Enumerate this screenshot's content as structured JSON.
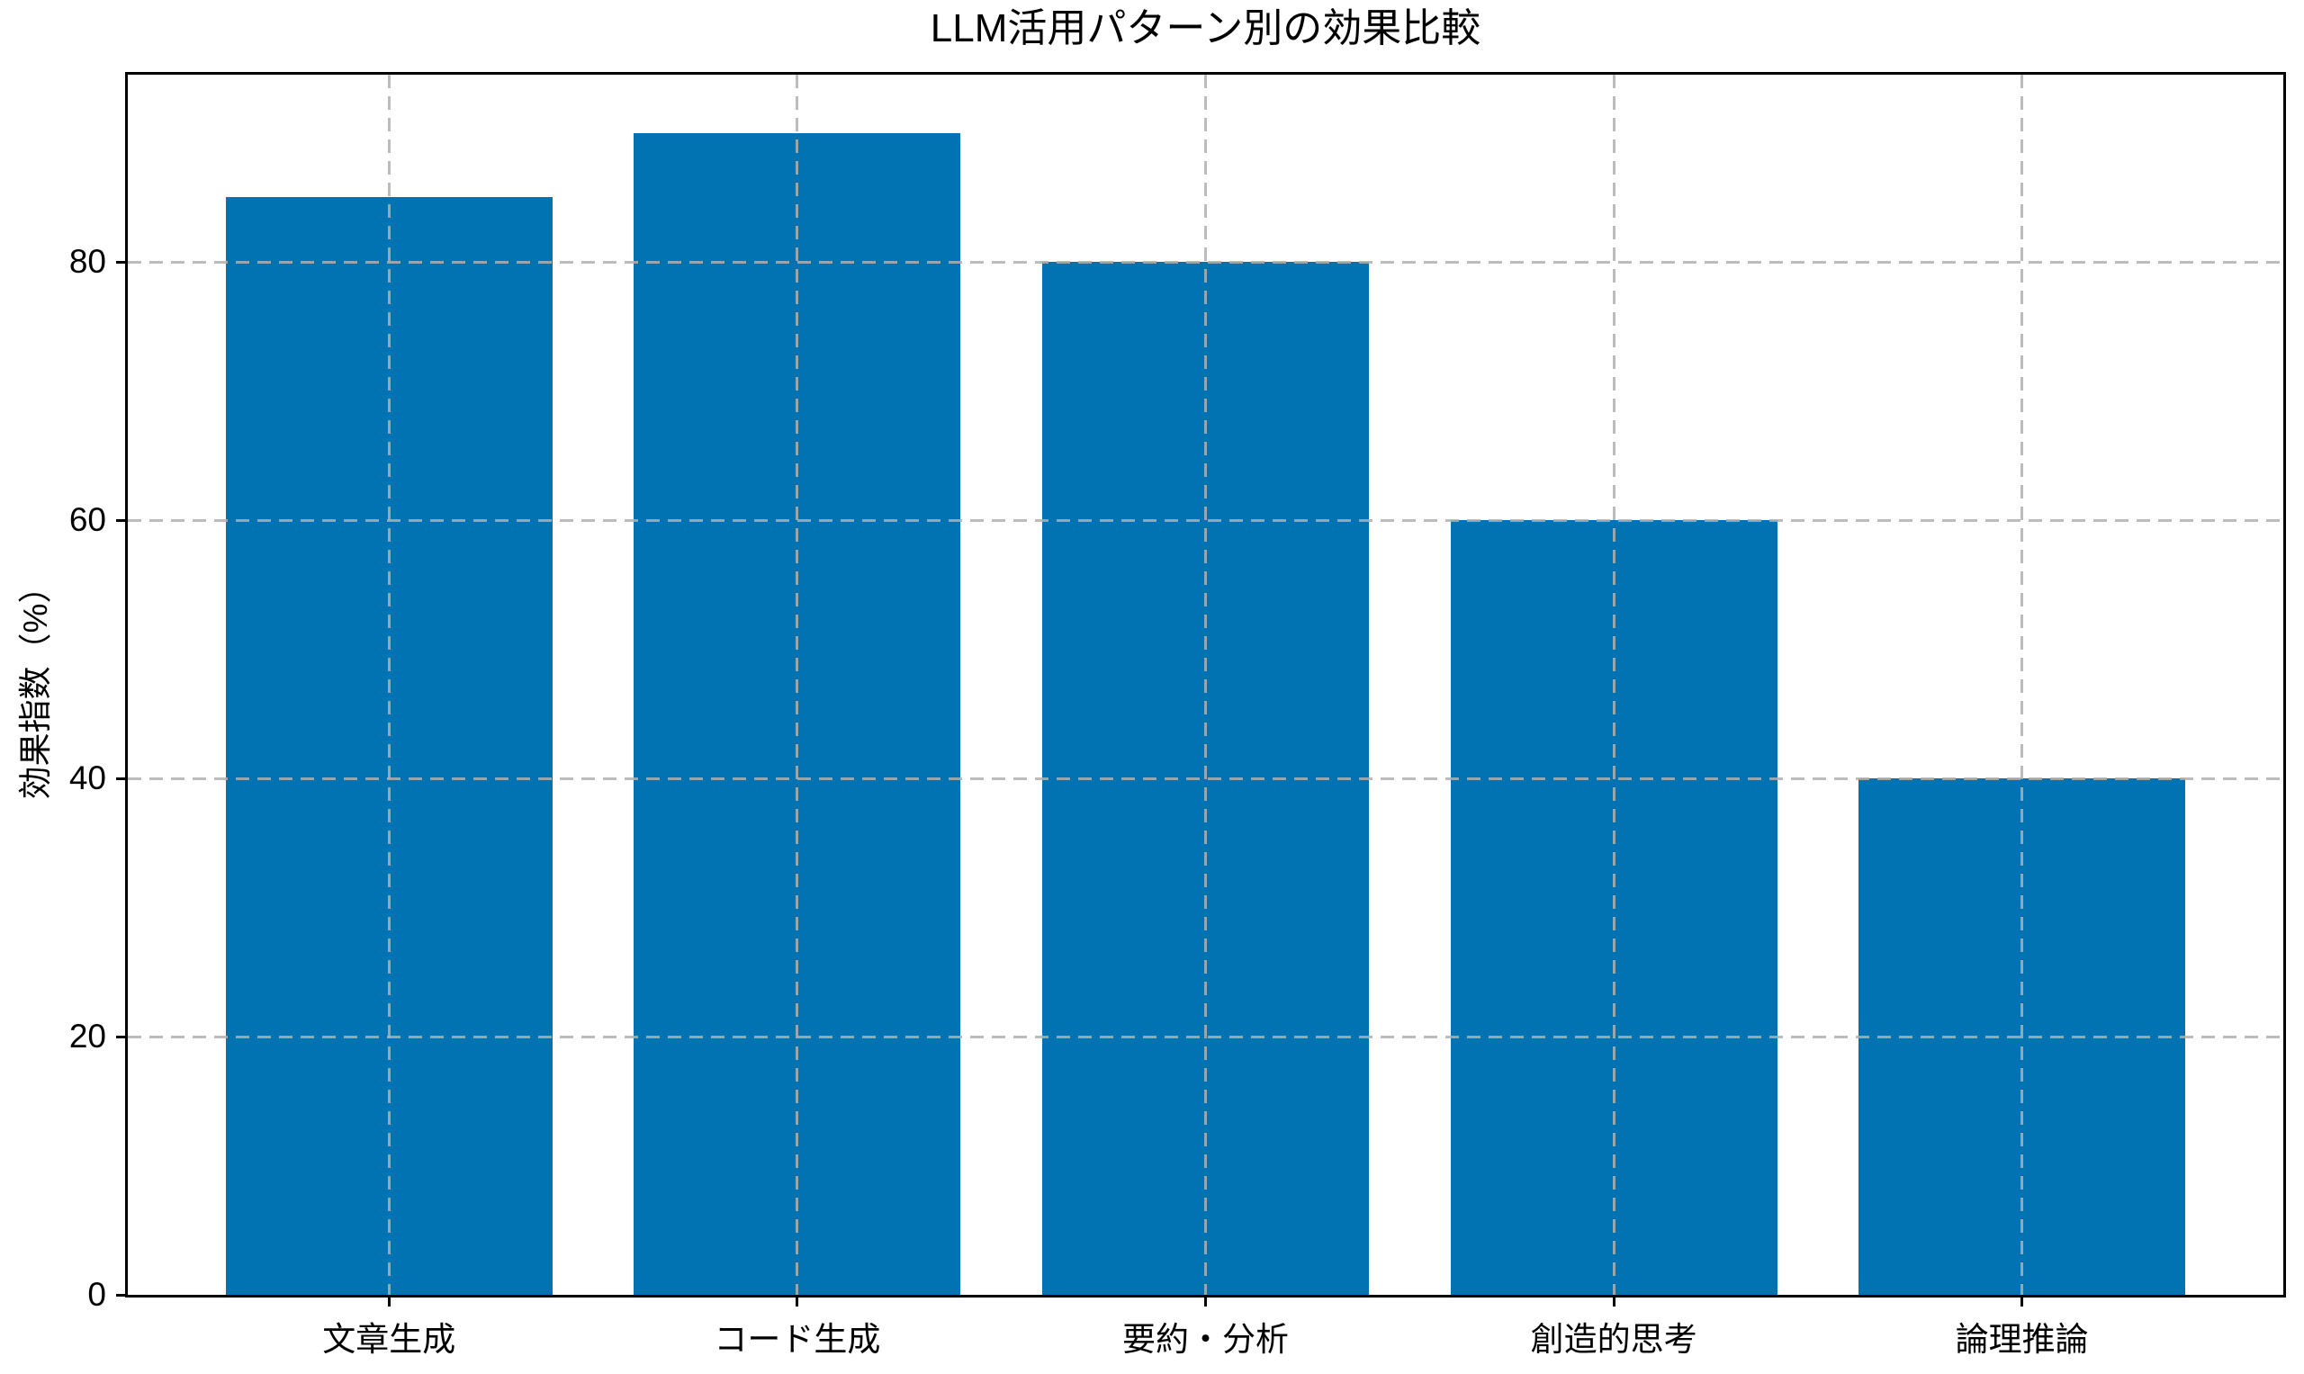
{
  "chart_data": {
    "type": "bar",
    "title": "LLM活用パターン別の効果比較",
    "ylabel": "効果指数（%）",
    "xlabel": "",
    "categories": [
      "文章生成",
      "コード生成",
      "要約・分析",
      "創造的思考",
      "論理推論"
    ],
    "values": [
      85,
      90,
      80,
      60,
      40
    ],
    "yticks": [
      0,
      20,
      40,
      60,
      80
    ],
    "ylim": [
      0,
      94.5
    ],
    "xlim": [
      -0.64,
      4.64
    ],
    "bar_width_units": 0.8,
    "bar_color": "#0173b2",
    "grid_color": "#b0b0b0",
    "grid_style": "dashed",
    "grid_above_bars": true,
    "legend": "none",
    "background": "#ffffff"
  }
}
